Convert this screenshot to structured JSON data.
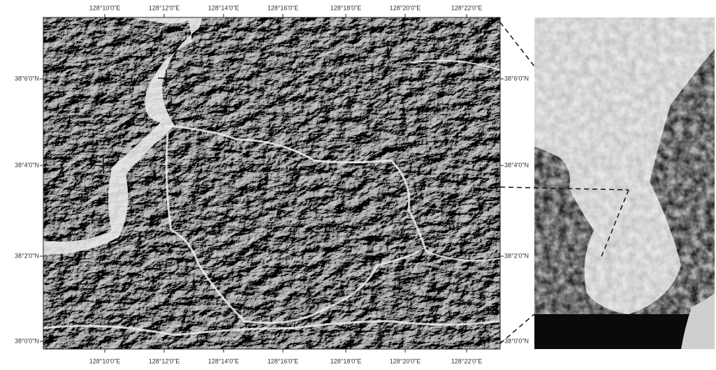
{
  "map": {
    "longitude_labels": [
      "128°10'0\"E",
      "128°12'0\"E",
      "128°14'0\"E",
      "128°16'0\"E",
      "128°18'0\"E",
      "128°20'0\"E",
      "128°22'0\"E"
    ],
    "latitude_labels": [
      "38°6'0\"N",
      "38°4'0\"N",
      "38°2'0\"N",
      "38°0'0\"N"
    ]
  }
}
